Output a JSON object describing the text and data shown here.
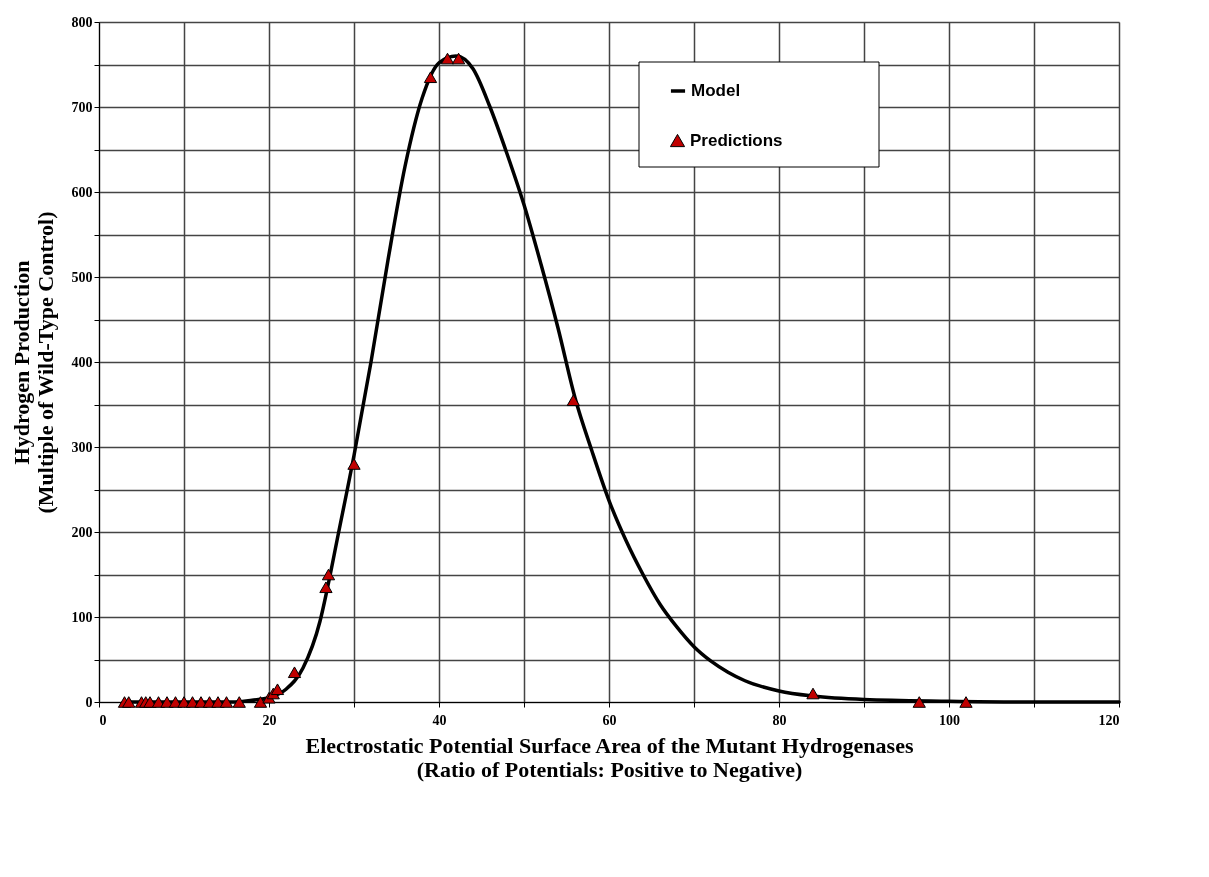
{
  "chart_data": {
    "type": "line",
    "xlabel": "Electrostatic Potential Surface Area of the  Mutant Hydrogenases\n(Ratio of Potentials: Positive to Negative)",
    "ylabel": "Hydrogen Production\n(Multiple of Wild-Type Control)",
    "xlim": [
      0,
      120
    ],
    "ylim": [
      0,
      800
    ],
    "xticks": [
      0,
      {
        "value": 10,
        "label": null
      },
      20,
      {
        "value": 30,
        "label": null
      },
      40,
      {
        "value": 50,
        "label": null
      },
      60,
      {
        "value": 70,
        "label": null
      },
      80,
      {
        "value": 90,
        "label": null
      },
      100,
      {
        "value": 110,
        "label": null
      },
      120
    ],
    "yticks": [
      0,
      {
        "value": 50,
        "label": null
      },
      100,
      {
        "value": 150,
        "label": null
      },
      200,
      {
        "value": 250,
        "label": null
      },
      300,
      {
        "value": 350,
        "label": null
      },
      400,
      {
        "value": 450,
        "label": null
      },
      500,
      {
        "value": 550,
        "label": null
      },
      600,
      {
        "value": 650,
        "label": null
      },
      700,
      {
        "value": 750,
        "label": null
      },
      800
    ],
    "grid": true,
    "legend": "top right",
    "series": [
      {
        "name": "Model",
        "color": "#000000",
        "marker": "none",
        "line_style": "solid",
        "x": [
          3,
          10,
          16,
          18,
          20,
          22,
          24,
          26,
          27,
          28,
          30,
          32,
          34,
          36,
          38,
          40,
          42,
          44,
          46,
          48,
          50,
          52,
          54,
          56,
          58,
          60,
          62,
          64,
          66,
          68,
          70,
          72,
          74,
          76,
          80,
          84,
          90,
          100,
          110,
          120
        ],
        "values": [
          0,
          0,
          0,
          2,
          5,
          15,
          40,
          95,
          140,
          190,
          290,
          400,
          520,
          630,
          710,
          752,
          760,
          745,
          700,
          645,
          585,
          515,
          440,
          358,
          295,
          237,
          190,
          150,
          115,
          88,
          65,
          48,
          35,
          25,
          13,
          7,
          3,
          1,
          0,
          0
        ]
      },
      {
        "name": "Predictions",
        "type": "scatter",
        "color": "#c00000",
        "marker": "triangle",
        "x": [
          3,
          3.5,
          5,
          5.5,
          6,
          7,
          8,
          9,
          10,
          11,
          12,
          13,
          14,
          15,
          16.5,
          19,
          20,
          20.5,
          21,
          23,
          26.7,
          27,
          30,
          39,
          41,
          42.3,
          55.8,
          84,
          96.5,
          102
        ],
        "values": [
          0,
          0,
          0,
          0,
          0,
          0,
          0,
          0,
          0,
          0,
          0,
          0,
          0,
          0,
          0,
          0,
          5,
          10,
          15,
          35,
          135,
          150,
          280,
          735,
          757,
          757,
          355,
          10,
          0,
          0
        ]
      }
    ]
  }
}
